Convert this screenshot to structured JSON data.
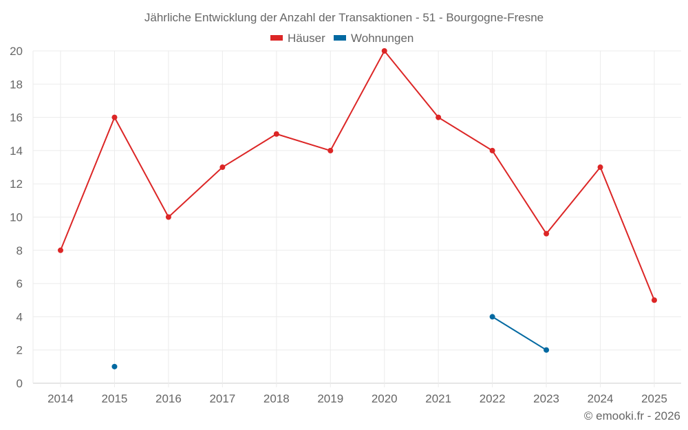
{
  "chart_data": {
    "type": "line",
    "title": "Jährliche Entwicklung der Anzahl der Transaktionen - 51 - Bourgogne-Fresne",
    "x": [
      "2014",
      "2015",
      "2016",
      "2017",
      "2018",
      "2019",
      "2020",
      "2021",
      "2022",
      "2023",
      "2024",
      "2025"
    ],
    "series": [
      {
        "name": "Häuser",
        "color": "#dc2626",
        "values": [
          8,
          16,
          10,
          13,
          15,
          14,
          20,
          16,
          14,
          9,
          13,
          5
        ]
      },
      {
        "name": "Wohnungen",
        "color": "#0369a1",
        "values": [
          null,
          1,
          null,
          null,
          null,
          null,
          null,
          null,
          4,
          2,
          null,
          null
        ]
      }
    ],
    "ylim": [
      0,
      20
    ],
    "yticks": [
      "0",
      "2",
      "4",
      "6",
      "8",
      "10",
      "12",
      "14",
      "16",
      "18",
      "20"
    ],
    "grid": true,
    "legend": "top-center",
    "xlabel": "",
    "ylabel": ""
  },
  "credit": "© emooki.fr - 2026"
}
